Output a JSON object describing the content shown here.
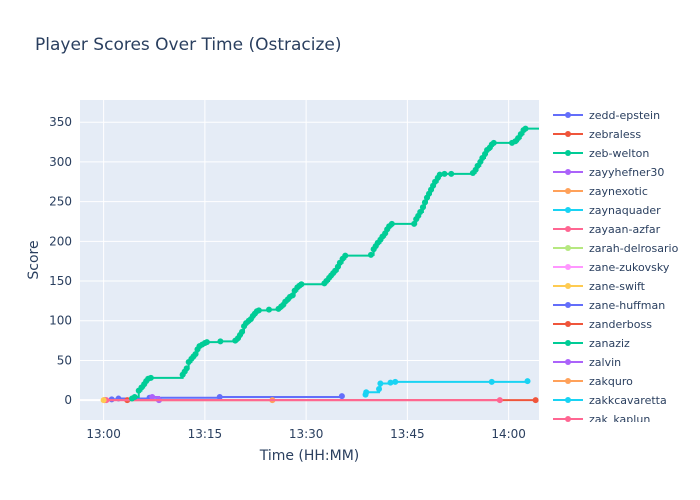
{
  "chart_data": {
    "type": "line",
    "title": "Player Scores Over Time (Ostracize)",
    "xlabel": "Time (HH:MM)",
    "ylabel": "Score",
    "x_ticks": [
      "13:00",
      "13:15",
      "13:30",
      "13:45",
      "14:00"
    ],
    "y_ticks": [
      0,
      50,
      100,
      150,
      200,
      250,
      300,
      350
    ],
    "xlim_minutes": [
      -3.5,
      64.5
    ],
    "ylim": [
      -25,
      378
    ],
    "grid": true,
    "legend_position": "right",
    "colors": {
      "plot_bg": "#e5ecf6",
      "grid": "#ffffff",
      "text": "#2a3f5f"
    },
    "series": [
      {
        "name": "zedd-epstein",
        "color": "#636efa",
        "points": [
          [
            0.2,
            0
          ],
          [
            1.2,
            1
          ],
          [
            2.2,
            2
          ],
          [
            6.8,
            3
          ],
          [
            17.2,
            4
          ],
          [
            35.3,
            5
          ]
        ]
      },
      {
        "name": "zebraless",
        "color": "#ef553b",
        "points": [
          [
            3.5,
            0
          ],
          [
            64,
            0
          ]
        ]
      },
      {
        "name": "zeb-welton",
        "color": "#00cc96",
        "points": [
          [
            4.2,
            2
          ],
          [
            4.6,
            4
          ],
          [
            5.2,
            12
          ],
          [
            5.6,
            16
          ],
          [
            6.0,
            20
          ],
          [
            6.3,
            24
          ],
          [
            6.6,
            27
          ],
          [
            7.0,
            28
          ],
          [
            11.7,
            32
          ],
          [
            12.0,
            36
          ],
          [
            12.3,
            40
          ],
          [
            12.6,
            48
          ],
          [
            13.0,
            52
          ],
          [
            13.3,
            55
          ],
          [
            13.6,
            58
          ],
          [
            13.9,
            64
          ],
          [
            14.2,
            68
          ],
          [
            14.6,
            70
          ],
          [
            15.0,
            72
          ],
          [
            15.3,
            73
          ],
          [
            17.3,
            74
          ],
          [
            19.5,
            75
          ],
          [
            19.9,
            78
          ],
          [
            20.2,
            82
          ],
          [
            20.5,
            86
          ],
          [
            20.8,
            93
          ],
          [
            21.1,
            97
          ],
          [
            21.5,
            100
          ],
          [
            21.8,
            102
          ],
          [
            22.1,
            106
          ],
          [
            22.4,
            109
          ],
          [
            22.7,
            112
          ],
          [
            23.0,
            113
          ],
          [
            24.5,
            114
          ],
          [
            25.9,
            115
          ],
          [
            26.3,
            118
          ],
          [
            26.6,
            120
          ],
          [
            26.9,
            124
          ],
          [
            27.3,
            127
          ],
          [
            27.6,
            130
          ],
          [
            28.0,
            132
          ],
          [
            28.3,
            138
          ],
          [
            28.7,
            142
          ],
          [
            29.0,
            144
          ],
          [
            29.3,
            146
          ],
          [
            32.7,
            147
          ],
          [
            33.0,
            150
          ],
          [
            33.4,
            154
          ],
          [
            33.7,
            157
          ],
          [
            34.0,
            160
          ],
          [
            34.3,
            163
          ],
          [
            34.7,
            168
          ],
          [
            35.0,
            173
          ],
          [
            35.4,
            178
          ],
          [
            35.8,
            182
          ],
          [
            39.6,
            183
          ],
          [
            40.0,
            190
          ],
          [
            40.3,
            194
          ],
          [
            40.6,
            198
          ],
          [
            41.0,
            202
          ],
          [
            41.3,
            206
          ],
          [
            41.7,
            210
          ],
          [
            42.0,
            215
          ],
          [
            42.3,
            219
          ],
          [
            42.7,
            222
          ],
          [
            46.0,
            222
          ],
          [
            46.3,
            228
          ],
          [
            46.6,
            232
          ],
          [
            46.9,
            237
          ],
          [
            47.3,
            243
          ],
          [
            47.6,
            249
          ],
          [
            47.9,
            255
          ],
          [
            48.2,
            260
          ],
          [
            48.5,
            265
          ],
          [
            48.8,
            270
          ],
          [
            49.1,
            275
          ],
          [
            49.5,
            280
          ],
          [
            49.8,
            284
          ],
          [
            50.5,
            285
          ],
          [
            51.5,
            285
          ],
          [
            54.7,
            286
          ],
          [
            55.1,
            290
          ],
          [
            55.4,
            295
          ],
          [
            55.8,
            300
          ],
          [
            56.1,
            305
          ],
          [
            56.5,
            310
          ],
          [
            56.8,
            315
          ],
          [
            57.2,
            318
          ],
          [
            57.5,
            322
          ],
          [
            57.8,
            324
          ],
          [
            60.5,
            324
          ],
          [
            61.0,
            326
          ],
          [
            61.4,
            330
          ],
          [
            61.8,
            335
          ],
          [
            62.2,
            340
          ],
          [
            62.5,
            342
          ],
          [
            65.0,
            343
          ],
          [
            65.4,
            345
          ],
          [
            65.8,
            348
          ],
          [
            66.1,
            352
          ]
        ]
      },
      {
        "name": "zayyhefner30",
        "color": "#ab63fa",
        "points": [
          [
            7.2,
            4
          ],
          [
            8.2,
            0
          ]
        ]
      },
      {
        "name": "zaynexotic",
        "color": "#ffa15a",
        "points": [
          [
            0.1,
            0
          ],
          [
            25.0,
            0
          ]
        ]
      },
      {
        "name": "zaynaquader",
        "color": "#19d3f3",
        "points": [
          [
            38.8,
            7
          ],
          [
            38.9,
            10
          ],
          [
            40.8,
            14
          ],
          [
            41.0,
            21
          ],
          [
            42.5,
            22
          ],
          [
            43.2,
            23
          ],
          [
            57.5,
            23
          ],
          [
            62.8,
            24
          ]
        ]
      },
      {
        "name": "zayaan-azfar",
        "color": "#ff6692",
        "points": [
          [
            0.4,
            0
          ],
          [
            58.7,
            0
          ]
        ]
      },
      {
        "name": "zarah-delrosario",
        "color": "#b6e880",
        "points": []
      },
      {
        "name": "zane-zukovsky",
        "color": "#ff97ff",
        "points": []
      },
      {
        "name": "zane-swift",
        "color": "#fecb52",
        "points": [
          [
            0.0,
            0
          ]
        ]
      },
      {
        "name": "zane-huffman",
        "color": "#636efa",
        "points": []
      },
      {
        "name": "zanderboss",
        "color": "#ef553b",
        "points": []
      },
      {
        "name": "zanaziz",
        "color": "#00cc96",
        "points": []
      },
      {
        "name": "zalvin",
        "color": "#ab63fa",
        "points": []
      },
      {
        "name": "zakquro",
        "color": "#ffa15a",
        "points": []
      },
      {
        "name": "zakkcavaretta",
        "color": "#19d3f3",
        "points": []
      },
      {
        "name": "zak_kaplun",
        "color": "#ff6692",
        "points": []
      }
    ]
  }
}
